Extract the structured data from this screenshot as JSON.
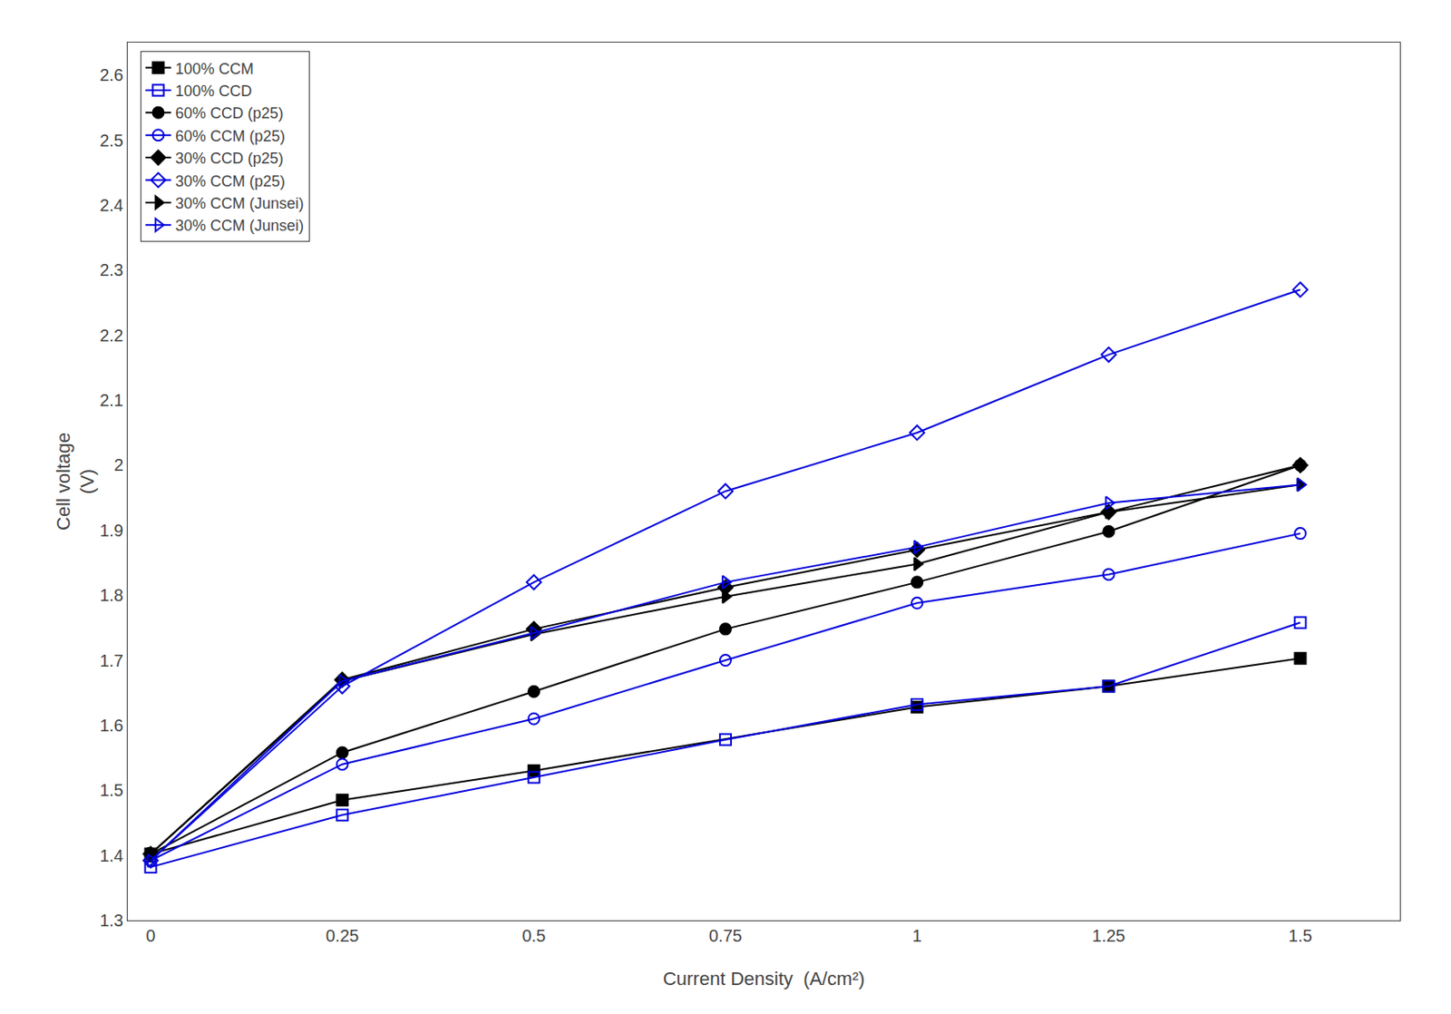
{
  "chart_data": {
    "type": "line",
    "x_label": "Current Density  (A/cm²)",
    "y_label": "Cell voltage\n(V)",
    "x": [
      0.0,
      0.25,
      0.5,
      0.75,
      1.0,
      1.25,
      1.5
    ],
    "series": [
      {
        "name": "100% CCM",
        "color": "black",
        "marker": "square",
        "values": [
          1.402,
          1.485,
          1.53,
          null,
          1.628,
          1.66,
          1.703
        ]
      },
      {
        "name": "100% CCD",
        "color": "#0000dd",
        "marker": "square-open",
        "values": [
          1.382,
          1.462,
          1.52,
          1.578,
          1.632,
          1.66,
          1.758
        ]
      },
      {
        "name": "60% CCD (p25)",
        "color": "black",
        "marker": "circle",
        "values": [
          1.402,
          1.558,
          1.652,
          1.748,
          1.82,
          1.898,
          2.0
        ]
      },
      {
        "name": "60% CCM (p25)",
        "color": "#0000dd",
        "marker": "circle-open",
        "values": [
          1.392,
          1.54,
          1.61,
          1.7,
          1.788,
          1.832,
          1.895
        ]
      },
      {
        "name": "30% CCD (p25)",
        "color": "black",
        "marker": "diamond",
        "values": [
          1.402,
          1.67,
          1.748,
          1.812,
          1.87,
          1.928,
          2.0
        ]
      },
      {
        "name": "30% CCM (p25)",
        "color": "#0000dd",
        "marker": "diamond-open",
        "values": [
          1.392,
          1.66,
          1.82,
          1.96,
          2.05,
          2.17,
          2.27
        ]
      },
      {
        "name": "30% CCM (Junsei)",
        "color": "black",
        "marker": "triangle-right",
        "values": [
          1.402,
          1.668,
          1.74,
          1.798,
          1.848,
          1.928,
          1.97
        ]
      },
      {
        "name": "30% CCM (Junsei)",
        "color": "#0000dd",
        "marker": "triangle-right-open",
        "values": [
          1.392,
          1.668,
          1.742,
          1.82,
          1.874,
          1.942,
          1.97
        ]
      }
    ],
    "xlim": [
      -0.03,
      1.63
    ],
    "ylim": [
      1.3,
      2.65
    ],
    "xticks": [
      0.0,
      0.25,
      0.5,
      0.75,
      1.0,
      1.25,
      1.5
    ],
    "yticks": [
      1.3,
      1.4,
      1.5,
      1.6,
      1.7,
      1.8,
      1.9,
      2.0,
      2.1,
      2.2,
      2.3,
      2.4,
      2.5,
      2.6
    ],
    "grid": false,
    "legend": "upper left"
  }
}
